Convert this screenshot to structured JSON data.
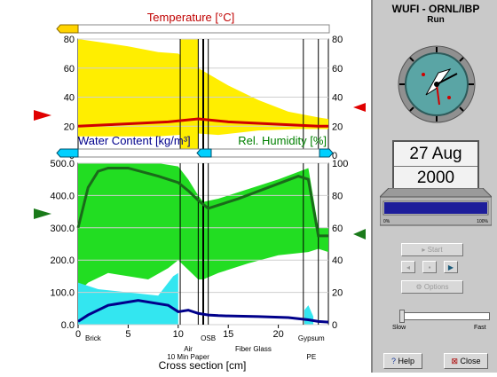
{
  "top_chart": {
    "title": "Temperature [°C]",
    "y_ticks_left": [
      "80",
      "60",
      "40",
      "20",
      "0"
    ],
    "y_ticks_right": [
      "80",
      "60",
      "40",
      "20",
      "0"
    ]
  },
  "bottom_chart": {
    "title_left": "Water Content [kg/m³]",
    "title_right": "Rel. Humidity [%]",
    "y_ticks_left": [
      "500.0",
      "400.0",
      "300.0",
      "200.0",
      "100.0",
      "0.0"
    ],
    "y_ticks_right": [
      "100",
      "80",
      "60",
      "40",
      "20",
      "0"
    ]
  },
  "x_axis": {
    "ticks": [
      "0",
      "5",
      "10",
      "15",
      "20"
    ],
    "layer_labels": [
      "Brick",
      "Air",
      "10 Min Paper",
      "OSB",
      "Fiber Glass",
      "Gypsum",
      "PE"
    ],
    "label": "Cross section [cm]"
  },
  "panel": {
    "title": "WUFI - ORNL/IBP",
    "subtitle": "Run",
    "date_day": "27 Aug",
    "date_year": "2000",
    "progress_min": "0%",
    "progress_max": "100%",
    "progress_value": 1.0,
    "start_label": "Start",
    "options_label": "Options",
    "slider_slow": "Slow",
    "slider_fast": "Fast",
    "help_label": "Help",
    "close_label": "Close"
  },
  "chart_data": [
    {
      "type": "area",
      "title": "Temperature [°C]",
      "xlabel": "Cross section [cm]",
      "ylabel": "Temperature [°C]",
      "xlim": [
        0,
        25
      ],
      "ylim": [
        0,
        80
      ],
      "series": [
        {
          "x": [
            0,
            3,
            6,
            9,
            12,
            15,
            18,
            21,
            24,
            25
          ],
          "values": [
            20,
            21,
            22,
            23,
            25,
            23,
            22,
            21,
            20,
            20
          ]
        }
      ]
    },
    {
      "type": "area",
      "title": "",
      "xlabel": "Cross section [cm]",
      "ylabel": "Water Content [kg/m³]",
      "xlim": [
        0,
        25
      ],
      "ylim": [
        0,
        500
      ],
      "series": [
        {
          "name": "Water Content [kg/m³]",
          "x": [
            0,
            1,
            3,
            6,
            9,
            10,
            11,
            12,
            13,
            14,
            15,
            18,
            21,
            23,
            24,
            25
          ],
          "values": [
            10,
            30,
            60,
            75,
            60,
            40,
            45,
            35,
            30,
            28,
            27,
            25,
            22,
            15,
            10,
            8
          ]
        },
        {
          "name": "Rel. Humidity [%]",
          "x": [
            0,
            1,
            2,
            3,
            5,
            8,
            10,
            11,
            12,
            13,
            14,
            16,
            19,
            22,
            23,
            24,
            25
          ],
          "values": [
            60,
            85,
            95,
            97,
            97,
            92,
            88,
            83,
            77,
            72,
            74,
            78,
            85,
            92,
            90,
            55,
            55
          ]
        }
      ]
    }
  ]
}
